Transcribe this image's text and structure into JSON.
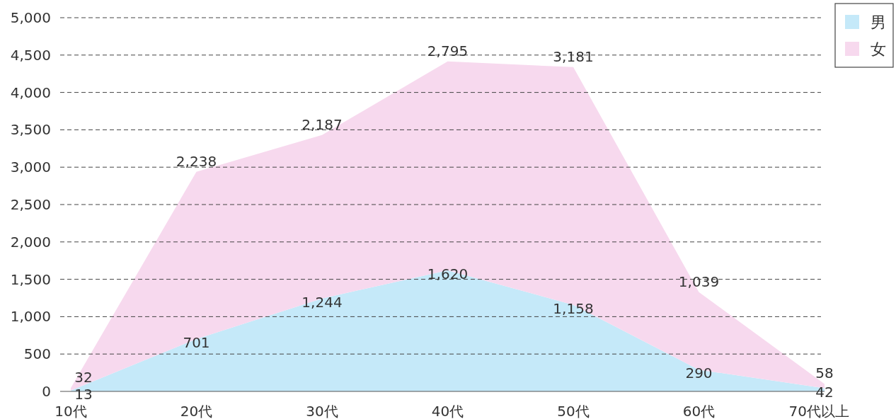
{
  "chart_data": {
    "type": "area",
    "stacked": true,
    "categories": [
      "10代",
      "20代",
      "30代",
      "40代",
      "50代",
      "60代",
      "70代以上"
    ],
    "series": [
      {
        "name": "男",
        "color": "#c5e9f9",
        "values": [
          13,
          701,
          1244,
          1620,
          1158,
          290,
          42
        ],
        "value_labels": [
          "13",
          "701",
          "1,244",
          "1,620",
          "1,158",
          "290",
          "42"
        ]
      },
      {
        "name": "女",
        "color": "#f7d9ee",
        "values": [
          32,
          2238,
          2187,
          2795,
          3181,
          1039,
          58
        ],
        "value_labels": [
          "32",
          "2,238",
          "2,187",
          "2,795",
          "3,181",
          "1,039",
          "58"
        ]
      }
    ],
    "ylim": [
      0,
      5000
    ],
    "yticks": [
      0,
      {
        "value": 500,
        "label": "500"
      },
      {
        "value": 1000,
        "label": "1,000"
      },
      {
        "value": 1500,
        "label": "1,500"
      },
      {
        "value": 2000,
        "label": "2,000"
      },
      {
        "value": 2500,
        "label": "2,500"
      },
      {
        "value": 3000,
        "label": "3,000"
      },
      {
        "value": 3500,
        "label": "3,500"
      },
      {
        "value": 4000,
        "label": "4,000"
      },
      {
        "value": 4500,
        "label": "4,500"
      },
      {
        "value": 5000,
        "label": "5,000"
      }
    ],
    "grid": "y",
    "line_style": "dashed",
    "legend": "top right"
  }
}
